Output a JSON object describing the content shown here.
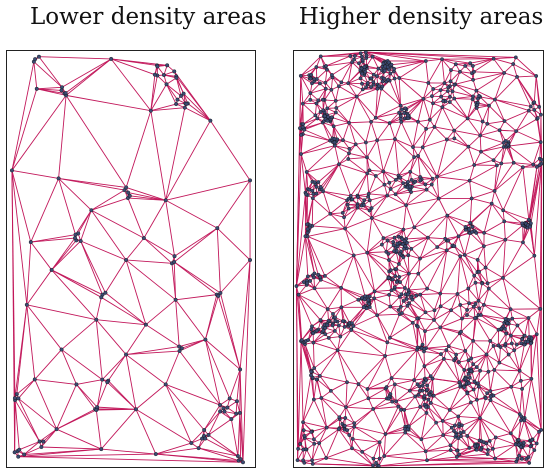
{
  "figure": {
    "left_title": "Lower density areas",
    "right_title": "Higher density areas"
  },
  "style": {
    "edge_color": "#c2185b",
    "node_color": "#3b4a72",
    "node_outline": "#111111",
    "background": "#ffffff"
  },
  "panels": {
    "left": {
      "density": "low",
      "node_count": 140
    },
    "right": {
      "density": "high",
      "node_count": 1400
    }
  }
}
